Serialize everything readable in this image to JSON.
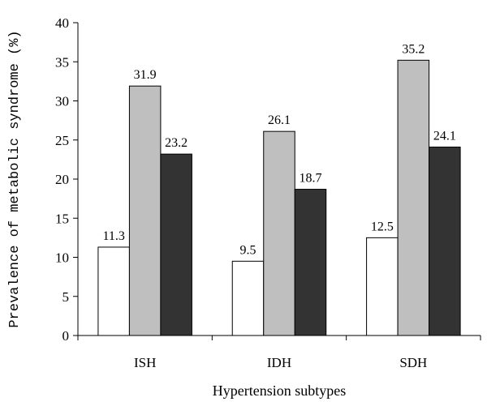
{
  "chart_data": {
    "type": "bar",
    "categories": [
      "ISH",
      "IDH",
      "SDH"
    ],
    "series": [
      {
        "values": [
          11.3,
          9.5,
          12.5
        ],
        "color": "#ffffff"
      },
      {
        "values": [
          31.9,
          26.1,
          35.2
        ],
        "color": "#bfbfbf"
      },
      {
        "values": [
          23.2,
          18.7,
          24.1
        ],
        "color": "#333333"
      }
    ],
    "data_labels": [
      [
        "11.3",
        "9.5",
        "12.5"
      ],
      [
        "31.9",
        "26.1",
        "35.2"
      ],
      [
        "23.2",
        "18.7",
        "24.1"
      ]
    ],
    "xlabel": "Hypertension subtypes",
    "ylabel": "Prevalence of metabolic syndrome (%)",
    "ylim": [
      0,
      40
    ],
    "yticks": [
      0,
      5,
      10,
      15,
      20,
      25,
      30,
      35,
      40
    ],
    "ytick_labels": [
      "0",
      "5",
      "10",
      "15",
      "20",
      "25",
      "30",
      "35",
      "40"
    ],
    "grid": false,
    "legend": "none"
  }
}
